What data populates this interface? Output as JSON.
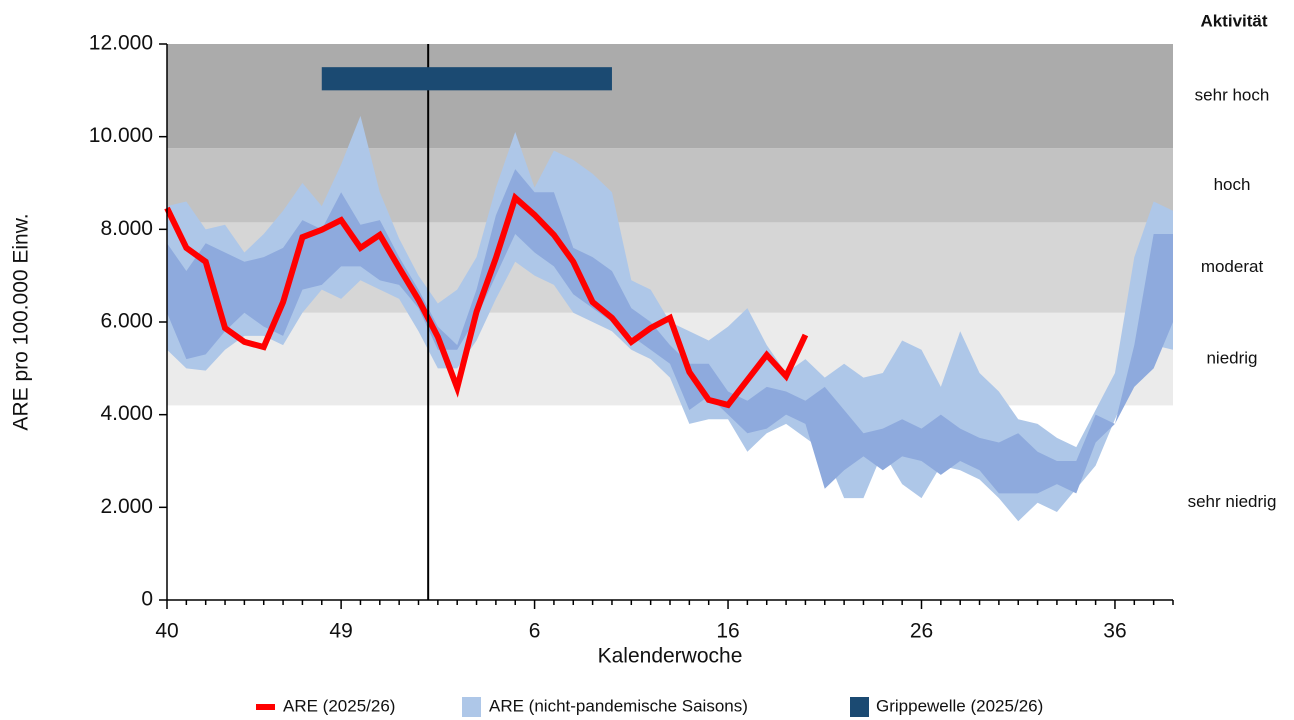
{
  "chart_data": {
    "type": "line",
    "activity_title": "Aktivität",
    "activity_levels": [
      {
        "label": "sehr niedrig",
        "from": 0,
        "to": 4200,
        "color": "#ffffff"
      },
      {
        "label": "niedrig",
        "from": 4200,
        "to": 6200,
        "color": "#ebebeb"
      },
      {
        "label": "moderat",
        "from": 6200,
        "to": 8150,
        "color": "#d6d6d6"
      },
      {
        "label": "hoch",
        "from": 8150,
        "to": 9750,
        "color": "#c2c2c2"
      },
      {
        "label": "sehr hoch",
        "from": 9750,
        "to": 12000,
        "color": "#ababab"
      }
    ],
    "ylabel": "ARE pro 100.000 Einw.",
    "xlabel": "Kalenderwoche",
    "categories": [
      "40",
      null,
      null,
      null,
      null,
      null,
      null,
      null,
      null,
      "49",
      null,
      null,
      null,
      null,
      null,
      null,
      null,
      null,
      null,
      "6",
      null,
      null,
      null,
      null,
      null,
      null,
      null,
      null,
      null,
      "16",
      null,
      null,
      null,
      null,
      null,
      null,
      null,
      null,
      null,
      "26",
      null,
      null,
      null,
      null,
      null,
      null,
      null,
      null,
      null,
      "36",
      null,
      null,
      null
    ],
    "ylim": [
      0,
      12000
    ],
    "yticks": [
      {
        "value": 0,
        "label": "0"
      },
      {
        "value": 2000,
        "label": "2.000"
      },
      {
        "value": 4000,
        "label": "4.000"
      },
      {
        "value": 6000,
        "label": "6.000"
      },
      {
        "value": 8000,
        "label": "8.000"
      },
      {
        "value": 10000,
        "label": "10.000"
      },
      {
        "value": 12000,
        "label": "12.000"
      }
    ],
    "vline_x": 13.5,
    "bands": [
      {
        "name": "ARE (nicht-pandemische Saisons)",
        "color": "#aec7e8",
        "upper": [
          8500,
          8600,
          8000,
          8100,
          7500,
          7900,
          8400,
          9000,
          8500,
          9400,
          10450,
          8800,
          7800,
          7000,
          6400,
          6700,
          7400,
          8900,
          10100,
          8900,
          9700,
          9500,
          9200,
          8800,
          6900,
          6700,
          6000,
          5800,
          5600,
          5900,
          6300,
          5500,
          4900,
          5200,
          4800,
          5100,
          4800,
          4900,
          5600,
          5400,
          4600,
          5800,
          4900,
          4500,
          3900,
          3800,
          3500,
          3300,
          4100,
          4900,
          7400,
          8600,
          8400
        ],
        "lower": [
          5400,
          5000,
          4950,
          5400,
          5700,
          5700,
          5500,
          6200,
          6700,
          6500,
          6900,
          6700,
          6500,
          5800,
          5000,
          5000,
          5600,
          6500,
          7300,
          7000,
          6800,
          6200,
          6000,
          5800,
          5400,
          5200,
          4800,
          3800,
          3900,
          3900,
          3200,
          3600,
          3800,
          3500,
          3200,
          2200,
          2200,
          3200,
          2500,
          2200,
          2900,
          2800,
          2600,
          2200,
          1700,
          2100,
          1900,
          2400,
          2900,
          3900,
          4800,
          5500,
          5400
        ]
      },
      {
        "color": "#8eaadd",
        "upper": [
          7700,
          7100,
          7700,
          7500,
          7300,
          7400,
          7600,
          8200,
          8000,
          8800,
          8100,
          8200,
          7400,
          6700,
          5900,
          5500,
          6700,
          8300,
          9300,
          8800,
          8800,
          7600,
          7400,
          7100,
          6300,
          6000,
          5500,
          5100,
          5100,
          4500,
          4300,
          4600,
          4500,
          4300,
          4600,
          4100,
          3600,
          3700,
          3900,
          3700,
          4000,
          3700,
          3500,
          3400,
          3600,
          3200,
          3000,
          3000,
          4000,
          3800,
          5500,
          7900,
          7900
        ],
        "lower": [
          6200,
          5200,
          5300,
          5800,
          6200,
          5900,
          5700,
          6700,
          6800,
          7200,
          7200,
          6900,
          6800,
          6300,
          5400,
          5400,
          6100,
          7000,
          7900,
          7500,
          7200,
          6600,
          6300,
          6000,
          5700,
          5400,
          5100,
          4100,
          4400,
          4000,
          3600,
          3700,
          4000,
          3800,
          2400,
          2800,
          3100,
          2800,
          3100,
          3000,
          2700,
          3000,
          2800,
          2300,
          2300,
          2300,
          2500,
          2300,
          3400,
          3800,
          4600,
          5000,
          6000
        ]
      }
    ],
    "series": [
      {
        "name": "ARE (2025/26)",
        "color": "#ff0000",
        "values": [
          8460,
          7600,
          7300,
          5870,
          5570,
          5460,
          6430,
          7830,
          7990,
          8200,
          7600,
          7880,
          7170,
          6480,
          5680,
          4580,
          6220,
          7380,
          8680,
          8310,
          7880,
          7300,
          6430,
          6090,
          5570,
          5870,
          6090,
          4920,
          4320,
          4210,
          4750,
          5290,
          4830,
          5720,
          null,
          null,
          null,
          null,
          null,
          null,
          null,
          null,
          null,
          null,
          null,
          null,
          null,
          null,
          null,
          null,
          null,
          null,
          null
        ]
      }
    ],
    "flu_wave": {
      "name": "Grippewelle (2025/26)",
      "color": "#1b4a72",
      "start": 8,
      "end": 23,
      "y": [
        11000,
        11500
      ]
    }
  }
}
